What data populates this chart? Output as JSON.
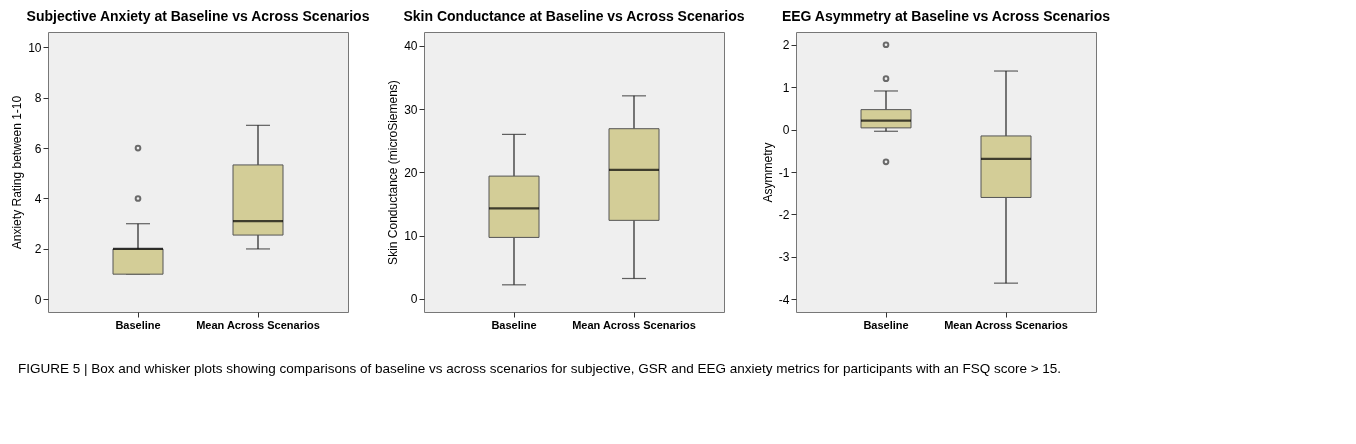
{
  "chart_data": [
    {
      "type": "box",
      "title": "Subjective Anxiety at Baseline vs Across Scenarios",
      "ylabel": "Anxiety Rating between 1-10",
      "categories": [
        "Baseline",
        "Mean Across Scenarios"
      ],
      "color": "#d3cd97",
      "grid": false,
      "ylim": [
        -0.5,
        10.6
      ],
      "yticks": [
        0,
        2,
        4,
        6,
        8,
        10
      ],
      "boxes": [
        {
          "low": 1,
          "q1": 1,
          "median": 2,
          "q3": 2,
          "high": 3,
          "outliers": [
            4,
            6
          ]
        },
        {
          "low": 2,
          "q1": 2.55,
          "median": 3.1,
          "q3": 5.33,
          "high": 6.9
        }
      ],
      "annotations": [
        "FIGURE 5 | Box and whisker plots showing comparisons of baseline vs across scenarios for subjective, GSR and EEG anxiety metrics for participants with an FSQ score > 15."
      ]
    },
    {
      "type": "box",
      "title": "Skin Conductance at Baseline vs Across Scenarios",
      "ylabel": "Skin Conductance (microSiemens)",
      "categories": [
        "Baseline",
        "Mean Across Scenarios"
      ],
      "color": "#d3cd97",
      "grid": false,
      "ylim": [
        -2.1,
        42.2
      ],
      "yticks": [
        0,
        10,
        20,
        30,
        40
      ],
      "boxes": [
        {
          "low": 2.2,
          "q1": 9.7,
          "median": 14.3,
          "q3": 19.4,
          "high": 26.0
        },
        {
          "low": 3.2,
          "q1": 12.4,
          "median": 20.4,
          "q3": 26.9,
          "high": 32.1
        }
      ]
    },
    {
      "type": "box",
      "title": "EEG Asymmetry at Baseline vs Across Scenarios",
      "ylabel": "Asymmetry",
      "categories": [
        "Baseline",
        "Mean Across Scenarios"
      ],
      "color": "#d3cd97",
      "grid": false,
      "ylim": [
        -4.3,
        2.3
      ],
      "yticks": [
        -4,
        -3,
        -2,
        -1,
        0,
        1,
        2
      ],
      "boxes": [
        {
          "low": -0.04,
          "q1": 0.04,
          "median": 0.21,
          "q3": 0.47,
          "high": 0.91,
          "outliers": [
            2.0,
            1.2,
            -0.76
          ]
        },
        {
          "low": -3.62,
          "q1": -1.6,
          "median": -0.69,
          "q3": -0.15,
          "high": 1.38
        }
      ]
    }
  ]
}
